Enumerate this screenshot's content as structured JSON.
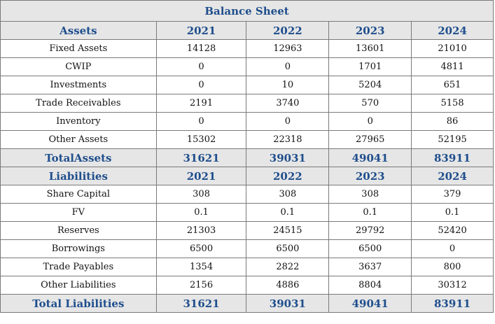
{
  "title": "Balance Sheet",
  "assets": {
    "header": [
      "Assets",
      "2021",
      "2022",
      "2023",
      "2024"
    ],
    "rows": [
      [
        "Fixed Assets",
        "14128",
        "12963",
        "13601",
        "21010"
      ],
      [
        "CWIP",
        "0",
        "0",
        "1701",
        "4811"
      ],
      [
        "Investments",
        "0",
        "10",
        "5204",
        "651"
      ],
      [
        "Trade Receivables",
        "2191",
        "3740",
        "570",
        "5158"
      ],
      [
        "Inventory",
        "0",
        "0",
        "0",
        "86"
      ],
      [
        "Other Assets",
        "15302",
        "22318",
        "27965",
        "52195"
      ]
    ],
    "total": [
      "TotalAssets",
      "31621",
      "39031",
      "49041",
      "83911"
    ]
  },
  "liabilities": {
    "header": [
      "Liabilities",
      "2021",
      "2022",
      "2023",
      "2024"
    ],
    "rows": [
      [
        "Share Capital",
        "308",
        "308",
        "308",
        "379"
      ],
      [
        "FV",
        "0.1",
        "0.1",
        "0.1",
        "0.1"
      ],
      [
        "Reserves",
        "21303",
        "24515",
        "29792",
        "52420"
      ],
      [
        "Borrowings",
        "6500",
        "6500",
        "6500",
        "0"
      ],
      [
        "Trade Payables",
        "1354",
        "2822",
        "3637",
        "800"
      ],
      [
        "Other Liabilities",
        "2156",
        "4886",
        "8804",
        "30312"
      ]
    ],
    "total": [
      "Total Liabilities",
      "31621",
      "39031",
      "49041",
      "83911"
    ]
  }
}
